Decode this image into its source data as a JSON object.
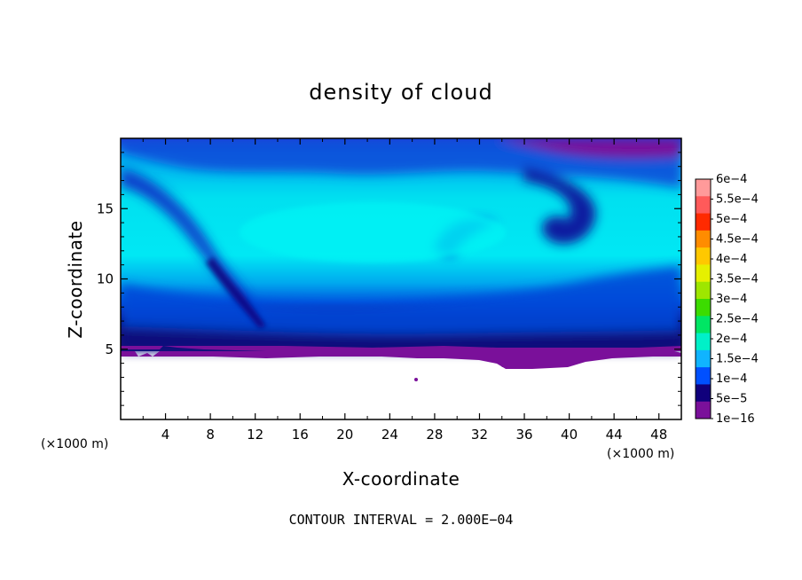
{
  "chart_data": {
    "type": "heatmap",
    "title": "density of cloud",
    "xlabel": "X-coordinate",
    "ylabel": "Z-coordinate",
    "x_unit_label": "(×1000 m)",
    "y_unit_label": "(×1000 m)",
    "x_ticks": [
      4,
      8,
      12,
      16,
      20,
      24,
      28,
      32,
      36,
      40,
      44,
      48
    ],
    "y_ticks": [
      5,
      10,
      15
    ],
    "xlim": [
      0,
      50
    ],
    "ylim": [
      0,
      20
    ],
    "colorbar": {
      "labels": [
        "6e−4",
        "5.5e−4",
        "5e−4",
        "4.5e−4",
        "4e−4",
        "3.5e−4",
        "3e−4",
        "2.5e−4",
        "2e−4",
        "1.5e−4",
        "1e−4",
        "5e−5",
        "1e−16"
      ],
      "colors": [
        "#ff9a9a",
        "#ff5a5a",
        "#ff2a00",
        "#ff8c00",
        "#ffc800",
        "#e6f000",
        "#9ee600",
        "#3cdc00",
        "#00e664",
        "#00f0c8",
        "#10b4ff",
        "#0050ff",
        "#10007c",
        "#7a109a"
      ]
    },
    "note": "CONTOUR INTERVAL = 2.000E−04"
  }
}
